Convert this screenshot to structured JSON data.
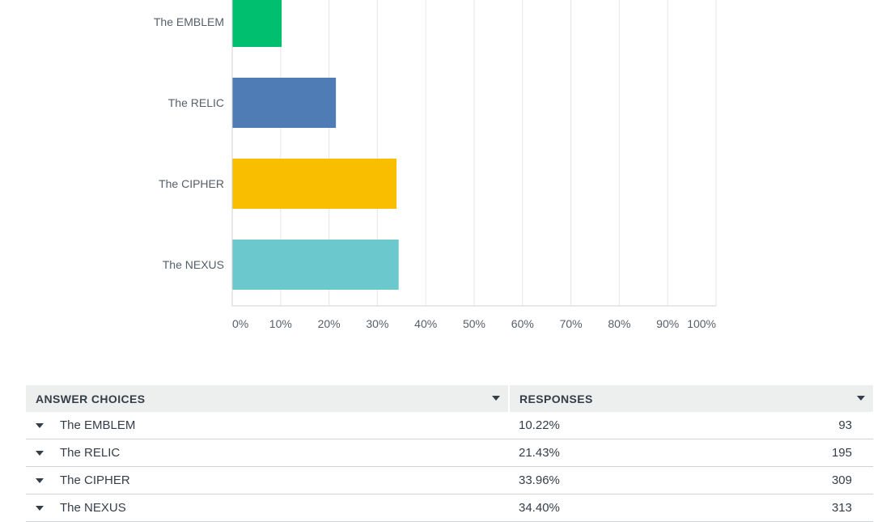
{
  "chart_data": {
    "type": "bar",
    "orientation": "horizontal",
    "categories": [
      "The EMBLEM",
      "The RELIC",
      "The CIPHER",
      "The NEXUS"
    ],
    "values": [
      10.22,
      21.43,
      33.96,
      34.4
    ],
    "colors": [
      "#00bf6f",
      "#507cb6",
      "#f9be00",
      "#6bc8cd"
    ],
    "xlim": [
      0,
      100
    ],
    "xticks": [
      "0%",
      "10%",
      "20%",
      "30%",
      "40%",
      "50%",
      "60%",
      "70%",
      "80%",
      "90%",
      "100%"
    ],
    "grid": true
  },
  "table": {
    "headers": {
      "choice": "ANSWER CHOICES",
      "responses": "RESPONSES"
    },
    "rows": [
      {
        "choice": "The EMBLEM",
        "percent": "10.22%",
        "count": "93"
      },
      {
        "choice": "The RELIC",
        "percent": "21.43%",
        "count": "195"
      },
      {
        "choice": "The CIPHER",
        "percent": "33.96%",
        "count": "309"
      },
      {
        "choice": "The NEXUS",
        "percent": "34.40%",
        "count": "313"
      }
    ]
  }
}
